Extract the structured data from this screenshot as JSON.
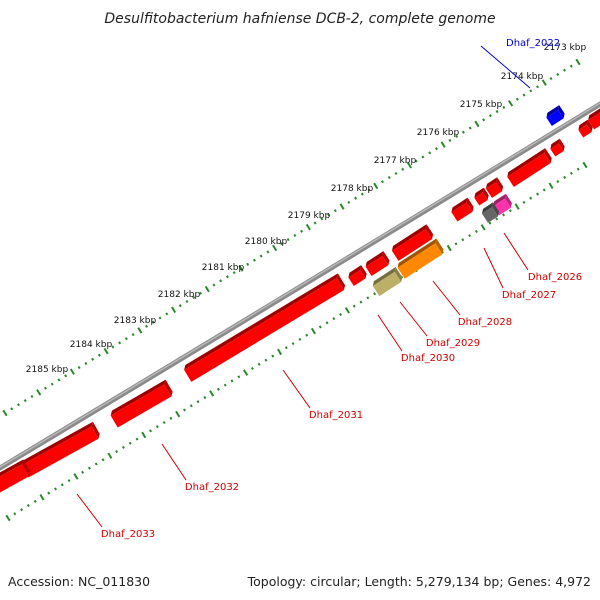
{
  "title": "Desulfitobacterium hafniense DCB-2, complete genome",
  "footer": {
    "accession": "Accession: NC_011830",
    "topology": "Topology: circular; Length: 5,279,134 bp; Genes: 4,972"
  },
  "colors": {
    "backbone": "#8a8a8a",
    "gene_default": "#ff0000",
    "tick_marks": "#2a8a2a",
    "label_red": "#cc0000",
    "label_blue": "#0000cc"
  },
  "scale_ticks": [
    "2173 kbp",
    "2174 kbp",
    "2175 kbp",
    "2176 kbp",
    "2177 kbp",
    "2178 kbp",
    "2179 kbp",
    "2180 kbp",
    "2181 kbp",
    "2182 kbp",
    "2183 kbp",
    "2184 kbp",
    "2185 kbp"
  ],
  "genes": [
    {
      "id": "Dhaf_2022",
      "color": "#0000ff",
      "label_color": "#0000cc"
    },
    {
      "id": "Dhaf_2026",
      "color": "#ff33aa",
      "label_color": "#cc0000"
    },
    {
      "id": "Dhaf_2027",
      "color": "#666666",
      "label_color": "#cc0000"
    },
    {
      "id": "Dhaf_2028",
      "color": "#ff8800",
      "label_color": "#cc0000"
    },
    {
      "id": "Dhaf_2029",
      "color": "#bbb066",
      "label_color": "#cc0000"
    },
    {
      "id": "Dhaf_2030",
      "color": "#ff0000",
      "label_color": "#cc0000"
    },
    {
      "id": "Dhaf_2031",
      "color": "#ff0000",
      "label_color": "#cc0000"
    },
    {
      "id": "Dhaf_2032",
      "color": "#ff0000",
      "label_color": "#cc0000"
    },
    {
      "id": "Dhaf_2033",
      "color": "#ff0000",
      "label_color": "#cc0000"
    }
  ]
}
